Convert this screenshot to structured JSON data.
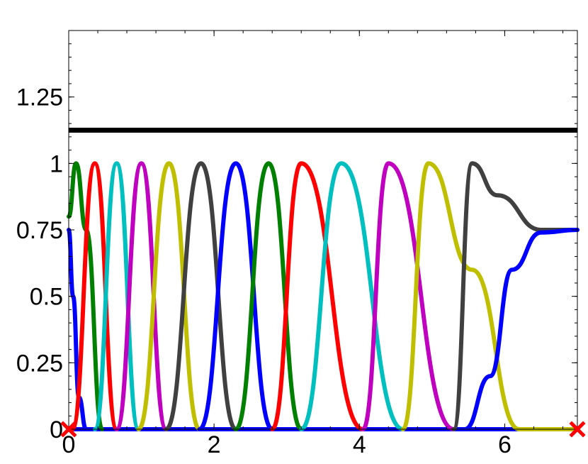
{
  "chart_data": {
    "type": "line",
    "title": "",
    "xlabel": "",
    "ylabel": "",
    "xlim": [
      0,
      7
    ],
    "ylim": [
      0,
      1.5
    ],
    "grid": false,
    "x_ticks": [
      0,
      2,
      4,
      6
    ],
    "x_tick_labels": [
      "0",
      "2",
      "4",
      "6"
    ],
    "y_ticks": [
      0,
      0.25,
      0.5,
      0.75,
      1,
      1.25
    ],
    "y_tick_labels": [
      "0",
      "0.25",
      "0.5",
      "0.75",
      "1",
      "1.25"
    ],
    "hline": {
      "y": 1.125,
      "color": "#000000"
    },
    "markers": [
      {
        "x": 0,
        "y": 0,
        "symbol": "x",
        "color": "#ff0000"
      },
      {
        "x": 7,
        "y": 0,
        "symbol": "x",
        "color": "#ff0000"
      }
    ],
    "series": [
      {
        "color": "#0000ff",
        "x": [
          0,
          0.06,
          0.14,
          0.24
        ],
        "y": [
          0.75,
          0.5,
          0.12,
          0
        ]
      },
      {
        "color": "#008000",
        "x": [
          0,
          0.1,
          0.24,
          0.46
        ],
        "y": [
          0.8,
          1,
          0.75,
          0
        ]
      },
      {
        "color": "#ff0000",
        "x": [
          0.05,
          0.36,
          0.66
        ],
        "y": [
          0,
          1,
          0
        ]
      },
      {
        "color": "#00bfbf",
        "x": [
          0.36,
          0.66,
          0.96
        ],
        "y": [
          0,
          1,
          0
        ]
      },
      {
        "color": "#bf00bf",
        "x": [
          0.66,
          1.0,
          1.34
        ],
        "y": [
          0,
          1,
          0
        ]
      },
      {
        "color": "#bfbf00",
        "x": [
          0.96,
          1.38,
          1.8
        ],
        "y": [
          0,
          1,
          0
        ]
      },
      {
        "color": "#404040",
        "x": [
          1.34,
          1.82,
          2.3
        ],
        "y": [
          0,
          1,
          0
        ]
      },
      {
        "color": "#0000ff",
        "x": [
          1.8,
          2.3,
          2.8
        ],
        "y": [
          0,
          1,
          0
        ]
      },
      {
        "color": "#008000",
        "x": [
          2.3,
          2.75,
          3.2
        ],
        "y": [
          0,
          1,
          0
        ]
      },
      {
        "color": "#ff0000",
        "x": [
          2.8,
          3.2,
          4.05
        ],
        "y": [
          0,
          1,
          0
        ]
      },
      {
        "color": "#00bfbf",
        "x": [
          3.2,
          3.75,
          4.6
        ],
        "y": [
          0,
          1,
          0
        ]
      },
      {
        "color": "#bf00bf",
        "x": [
          4.05,
          4.4,
          5.3
        ],
        "y": [
          0,
          1,
          0
        ]
      },
      {
        "color": "#bfbf00",
        "x": [
          4.6,
          4.95,
          5.55,
          6.2,
          7
        ],
        "y": [
          0,
          1,
          0.6,
          0,
          0
        ]
      },
      {
        "color": "#404040",
        "x": [
          5.3,
          5.55,
          5.9,
          6.5,
          7
        ],
        "y": [
          0,
          1,
          0.88,
          0.75,
          0.75
        ]
      },
      {
        "color": "#0000ff",
        "x": [
          5.45,
          5.8,
          6.1,
          6.5,
          7
        ],
        "y": [
          0,
          0.2,
          0.6,
          0.74,
          0.75
        ]
      }
    ]
  }
}
